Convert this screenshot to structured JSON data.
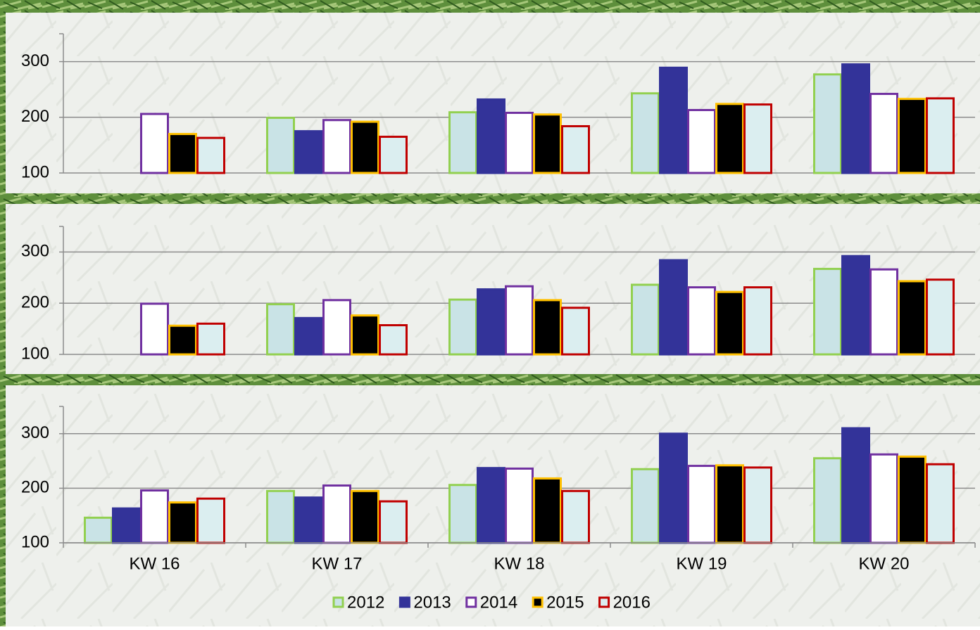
{
  "chart_data": [
    {
      "type": "bar",
      "ylim": [
        100,
        350
      ],
      "yticks": [
        100,
        200,
        300
      ],
      "grid": true,
      "series": [
        {
          "color": "#c9e3e6",
          "edgecolor": "#92d050",
          "values": [
            null,
            199,
            209,
            243,
            277
          ]
        },
        {
          "color": "#333399",
          "edgecolor": "#333399",
          "values": [
            null,
            175,
            232,
            289,
            295
          ]
        },
        {
          "color": "#ffffff",
          "edgecolor": "#7030a0",
          "values": [
            206,
            195,
            208,
            213,
            242
          ]
        },
        {
          "color": "#000000",
          "edgecolor": "#ffc000",
          "values": [
            170,
            192,
            205,
            224,
            233
          ]
        },
        {
          "color": "#dbeef0",
          "edgecolor": "#c00000",
          "values": [
            163,
            165,
            184,
            223,
            234
          ]
        }
      ]
    },
    {
      "type": "bar",
      "ylim": [
        100,
        350
      ],
      "yticks": [
        100,
        200,
        300
      ],
      "grid": true,
      "series": [
        {
          "color": "#c9e3e6",
          "edgecolor": "#92d050",
          "values": [
            null,
            198,
            207,
            236,
            267
          ]
        },
        {
          "color": "#333399",
          "edgecolor": "#333399",
          "values": [
            null,
            171,
            227,
            284,
            292
          ]
        },
        {
          "color": "#ffffff",
          "edgecolor": "#7030a0",
          "values": [
            199,
            206,
            233,
            231,
            266
          ]
        },
        {
          "color": "#000000",
          "edgecolor": "#ffc000",
          "values": [
            156,
            176,
            206,
            222,
            243
          ]
        },
        {
          "color": "#dbeef0",
          "edgecolor": "#c00000",
          "values": [
            160,
            157,
            191,
            231,
            246
          ]
        }
      ]
    },
    {
      "type": "bar",
      "ylim": [
        100,
        350
      ],
      "yticks": [
        100,
        200,
        300
      ],
      "grid": true,
      "categories": [
        "KW 16",
        "KW 17",
        "KW 18",
        "KW 19",
        "KW 20"
      ],
      "series": [
        {
          "name": "2012",
          "color": "#c9e3e6",
          "edgecolor": "#92d050",
          "values": [
            146,
            195,
            206,
            235,
            255
          ]
        },
        {
          "name": "2013",
          "color": "#333399",
          "edgecolor": "#333399",
          "values": [
            163,
            183,
            237,
            300,
            310
          ]
        },
        {
          "name": "2014",
          "color": "#ffffff",
          "edgecolor": "#7030a0",
          "values": [
            196,
            205,
            236,
            241,
            262
          ]
        },
        {
          "name": "2015",
          "color": "#000000",
          "edgecolor": "#ffc000",
          "values": [
            174,
            195,
            218,
            242,
            258
          ]
        },
        {
          "name": "2016",
          "color": "#dbeef0",
          "edgecolor": "#c00000",
          "values": [
            181,
            176,
            195,
            238,
            244
          ]
        }
      ]
    }
  ]
}
